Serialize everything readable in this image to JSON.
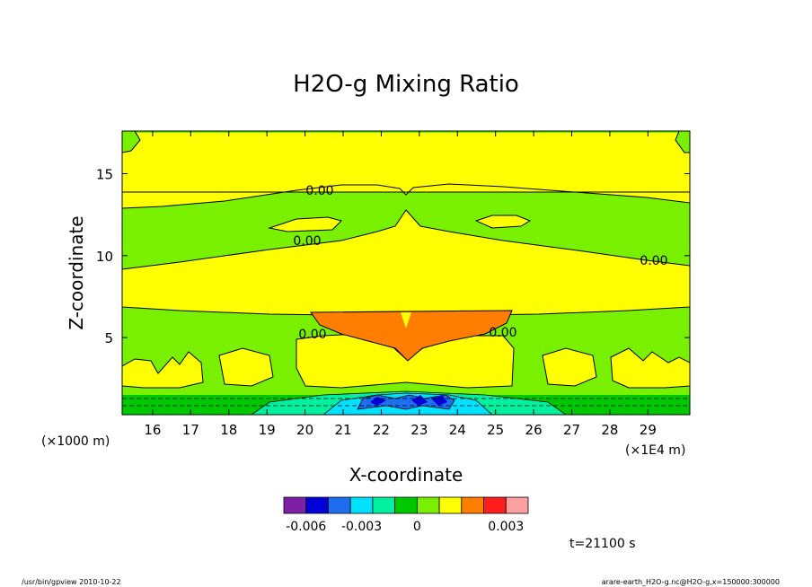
{
  "chart_data": {
    "type": "heatmap",
    "title": "H2O-g Mixing Ratio",
    "xlabel": "X-coordinate",
    "ylabel": "Z-coordinate",
    "x_unit": "(×1E4 m)",
    "y_unit": "(×1000 m)",
    "x_ticks": [
      "16",
      "17",
      "18",
      "19",
      "20",
      "21",
      "22",
      "23",
      "24",
      "25",
      "26",
      "27",
      "28",
      "29"
    ],
    "y_ticks": [
      "5",
      "10",
      "15"
    ],
    "xlim": [
      15.2,
      30.1
    ],
    "ylim": [
      0.3,
      17.6
    ],
    "contour_labels": [
      "0.00",
      "0.00",
      "0.00",
      "0.00",
      "0.00"
    ],
    "colorbar": {
      "tick_labels": [
        "-0.006",
        "-0.003",
        "0",
        "0.003"
      ],
      "colors": [
        "#7e1fa8",
        "#0000d8",
        "#1e6ff0",
        "#00e1ff",
        "#00f0a0",
        "#00c800",
        "#78f000",
        "#ffff00",
        "#ff7d00",
        "#ff1e1e",
        "#ffa0a0"
      ]
    },
    "time_label": "t=21100 s"
  },
  "footer": {
    "left": "/usr/bin/gpview   2010-10-22",
    "right": "arare-earth_H2O-g.nc@H2O-g,x=150000:300000"
  }
}
